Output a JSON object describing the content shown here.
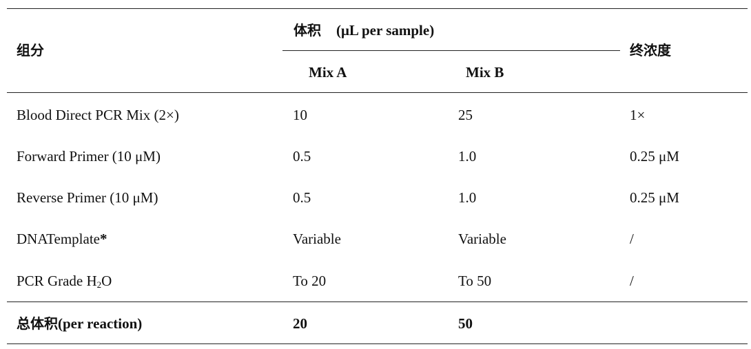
{
  "header": {
    "component_label": "组分",
    "volume_label_cjk": "体积",
    "volume_label_unit": "(μL per sample)",
    "mix_a": "Mix A",
    "mix_b": "Mix B",
    "final_conc_label": "终浓度"
  },
  "rows": [
    {
      "component": "Blood Direct PCR Mix (2×)",
      "mix_a": "10",
      "mix_b": "25",
      "final": "1×"
    },
    {
      "component": "Forward Primer (10 μM)",
      "mix_a": "0.5",
      "mix_b": "1.0",
      "final": "0.25 μM"
    },
    {
      "component": "Reverse Primer (10 μM)",
      "mix_a": "0.5",
      "mix_b": "1.0",
      "final": "0.25 μM"
    },
    {
      "component_main": "DNATemplate",
      "component_mark": "*",
      "mix_a": "Variable",
      "mix_b": "Variable",
      "final": "/"
    },
    {
      "component_pre": "PCR Grade H",
      "component_sub": "2",
      "component_post": "O",
      "mix_a": "To 20",
      "mix_b": "To 50",
      "final": "/"
    }
  ],
  "total": {
    "label_cjk": "总体积",
    "label_en": "(per reaction)",
    "mix_a": "20",
    "mix_b": "50",
    "final": ""
  }
}
